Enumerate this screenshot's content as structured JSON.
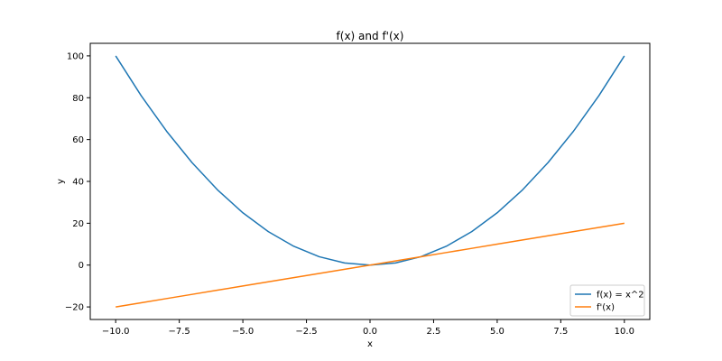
{
  "chart_data": {
    "type": "line",
    "title": "f(x) and f'(x)",
    "xlabel": "x",
    "ylabel": "y",
    "xlim": [
      -11,
      11
    ],
    "ylim": [
      -26,
      106
    ],
    "xticks": [
      -10,
      -7.5,
      -5,
      -2.5,
      0,
      2.5,
      5,
      7.5,
      10
    ],
    "xtick_labels": [
      "−10.0",
      "−7.5",
      "−5.0",
      "−2.5",
      "0.0",
      "2.5",
      "5.0",
      "7.5",
      "10.0"
    ],
    "yticks": [
      -20,
      0,
      20,
      40,
      60,
      80,
      100
    ],
    "ytick_labels": [
      "−20",
      "0",
      "20",
      "40",
      "60",
      "80",
      "100"
    ],
    "grid": false,
    "legend_position": "lower-right",
    "x": [
      -10,
      -9,
      -8,
      -7,
      -6,
      -5,
      -4,
      -3,
      -2,
      -1,
      0,
      1,
      2,
      3,
      4,
      5,
      6,
      7,
      8,
      9,
      10
    ],
    "series": [
      {
        "name": "f(x) = x^2",
        "color": "#1f77b4",
        "values": [
          100,
          81,
          64,
          49,
          36,
          25,
          16,
          9,
          4,
          1,
          0,
          1,
          4,
          9,
          16,
          25,
          36,
          49,
          64,
          81,
          100
        ]
      },
      {
        "name": "f'(x)",
        "color": "#ff7f0e",
        "values": [
          -20,
          -18,
          -16,
          -14,
          -12,
          -10,
          -8,
          -6,
          -4,
          -2,
          0,
          2,
          4,
          6,
          8,
          10,
          12,
          14,
          16,
          18,
          20
        ]
      }
    ]
  }
}
